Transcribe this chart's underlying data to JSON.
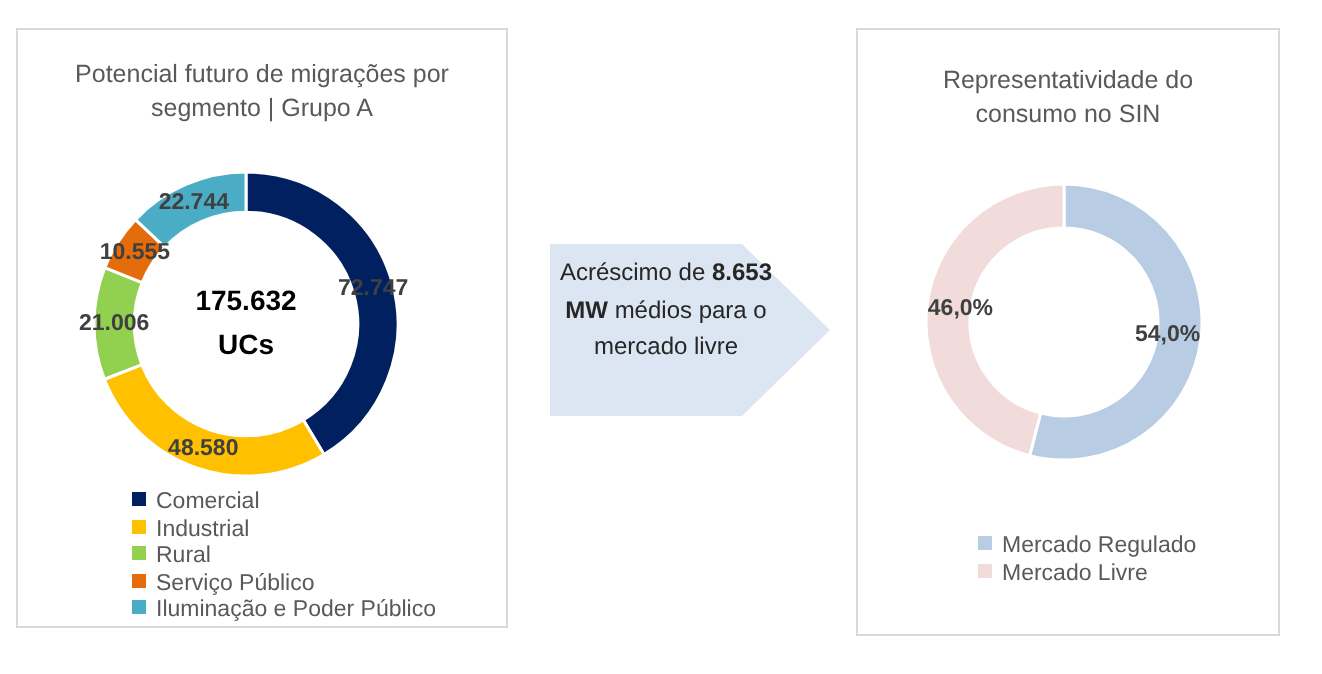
{
  "chart_data": [
    {
      "type": "donut",
      "title": "Potencial futuro de migrações por segmento | Grupo A",
      "categories": [
        "Comercial",
        "Industrial",
        "Rural",
        "Serviço Público",
        "Iluminação e Poder Público"
      ],
      "values": [
        72747,
        48580,
        21006,
        10555,
        22744
      ],
      "value_labels": [
        "72.747",
        "48.580",
        "21.006",
        "10.555",
        "22.744"
      ],
      "colors": [
        "#002060",
        "#ffc000",
        "#92d050",
        "#e46c0a",
        "#4bacc6"
      ],
      "annotations": [
        "175.632",
        "UCs"
      ],
      "legend": "bottom"
    },
    {
      "type": "other",
      "annotations": [
        "Acréscimo de",
        "8.653 MW",
        "médios para o mercado livre"
      ]
    },
    {
      "type": "donut",
      "title": "Representatividade do consumo no SIN",
      "categories": [
        "Mercado Regulado",
        "Mercado Livre"
      ],
      "values": [
        54.0,
        46.0
      ],
      "value_labels": [
        "54,0%",
        "46,0%"
      ],
      "colors": [
        "#b8cce4",
        "#f2dcdb"
      ],
      "legend": "bottom"
    }
  ]
}
